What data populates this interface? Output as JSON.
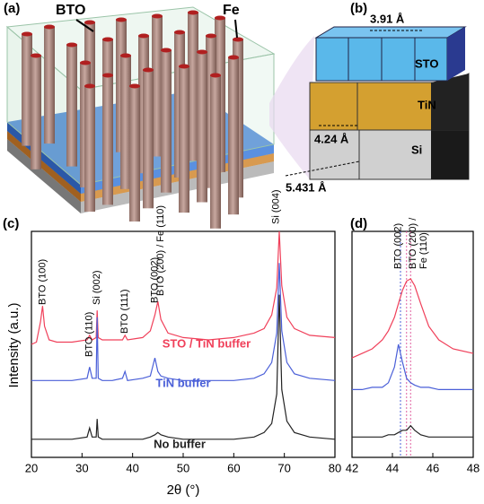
{
  "illustration": {
    "panel_a": "(a)",
    "panel_b": "(b)",
    "bto": "BTO",
    "fe": "Fe",
    "d_sto": "3.91 Å",
    "sto": "STO",
    "tin": "TiN",
    "d_tin": "4.24 Å",
    "si": "Si",
    "d_si": "5.431 Å"
  },
  "chart_data": [
    {
      "type": "line",
      "panel": "(c)",
      "xlabel": "2θ (°)",
      "ylabel": "Intensity (a.u.)",
      "xlim": [
        20,
        80
      ],
      "xticks": [
        20,
        30,
        40,
        50,
        60,
        70,
        80
      ],
      "ylim": [
        0,
        100
      ],
      "x": [
        20,
        21,
        21.8,
        22.2,
        22.6,
        23.5,
        25,
        28,
        31,
        31.5,
        32,
        32.8,
        33,
        33.2,
        34,
        36,
        38,
        38.5,
        39,
        42,
        43.5,
        44.4,
        45,
        45.6,
        47,
        50,
        55,
        60,
        64,
        66,
        67.5,
        68.5,
        69,
        69.5,
        70.5,
        72,
        75,
        80
      ],
      "series": [
        {
          "name": "STO / TiN buffer",
          "color": "#f0405a",
          "values": [
            50,
            51,
            60,
            67,
            58,
            52,
            51,
            51,
            52,
            54,
            52,
            53,
            65,
            53,
            52,
            52,
            52,
            54,
            52,
            53,
            56,
            63,
            69,
            61,
            55,
            53,
            52,
            53,
            55,
            57,
            63,
            75,
            100,
            76,
            62,
            57,
            54,
            53
          ]
        },
        {
          "name": "TiN buffer",
          "color": "#4a5fd8",
          "values": [
            34,
            34,
            34,
            34,
            34,
            34,
            34,
            34,
            35,
            40,
            35,
            35,
            62,
            35,
            34,
            34,
            35,
            38,
            34,
            35,
            36,
            44,
            38,
            36,
            35,
            34,
            34,
            34,
            35,
            37,
            42,
            55,
            86,
            56,
            42,
            37,
            35,
            34
          ]
        },
        {
          "name": "No buffer",
          "color": "#222222",
          "values": [
            8,
            8,
            8,
            8,
            8,
            8,
            8,
            8,
            9,
            13,
            9,
            9,
            17,
            9,
            8,
            8,
            8,
            8,
            8,
            8,
            9,
            10,
            11,
            10,
            9,
            8,
            8,
            8,
            9,
            11,
            15,
            28,
            72,
            30,
            16,
            11,
            9,
            8
          ]
        }
      ],
      "annotations": [
        {
          "lines": [
            "BTO (100)"
          ],
          "x": 22.2
        },
        {
          "lines": [
            "BTO (110)"
          ],
          "x": 31.5
        },
        {
          "lines": [
            "Si (002)"
          ],
          "x": 33
        },
        {
          "lines": [
            "BTO (111)"
          ],
          "x": 38.5
        },
        {
          "lines": [
            "BTO (002)"
          ],
          "x": 44.4
        },
        {
          "lines": [
            "BTO (200) / Fe (110)"
          ],
          "x": 45.6
        },
        {
          "lines": [
            "Si (004)"
          ],
          "x": 68.4
        }
      ]
    },
    {
      "type": "line",
      "panel": "(d)",
      "xlim": [
        42,
        48
      ],
      "xticks": [
        42,
        44,
        46,
        48
      ],
      "ylim": [
        0,
        100
      ],
      "x": [
        42,
        42.5,
        43,
        43.5,
        43.8,
        44.1,
        44.3,
        44.5,
        44.7,
        44.9,
        45.1,
        45.4,
        45.8,
        46.3,
        47,
        48
      ],
      "series": [
        {
          "color": "#f0405a",
          "values": [
            44,
            46,
            48,
            52,
            56,
            62,
            68,
            74,
            78,
            79,
            76,
            68,
            58,
            52,
            48,
            46
          ]
        },
        {
          "color": "#4a5fd8",
          "values": [
            30,
            30,
            31,
            31,
            33,
            40,
            50,
            42,
            35,
            33,
            32,
            31,
            31,
            30,
            30,
            30
          ]
        },
        {
          "color": "#222222",
          "values": [
            9,
            9,
            9,
            9,
            10,
            10,
            11,
            12,
            12,
            14,
            12,
            10,
            9,
            9,
            9,
            9
          ]
        }
      ],
      "reflines": [
        {
          "x": 44.4,
          "color": "#4a5fd8"
        },
        {
          "x": 44.7,
          "color": "#e060a0"
        },
        {
          "x": 44.9,
          "color": "#e060a0"
        }
      ],
      "annotations": [
        {
          "lines": [
            "BTO (002)"
          ],
          "x": 44.3
        },
        {
          "lines": [
            "BTO (200) /",
            "Fe (110)"
          ],
          "x": 45.3
        }
      ]
    }
  ]
}
